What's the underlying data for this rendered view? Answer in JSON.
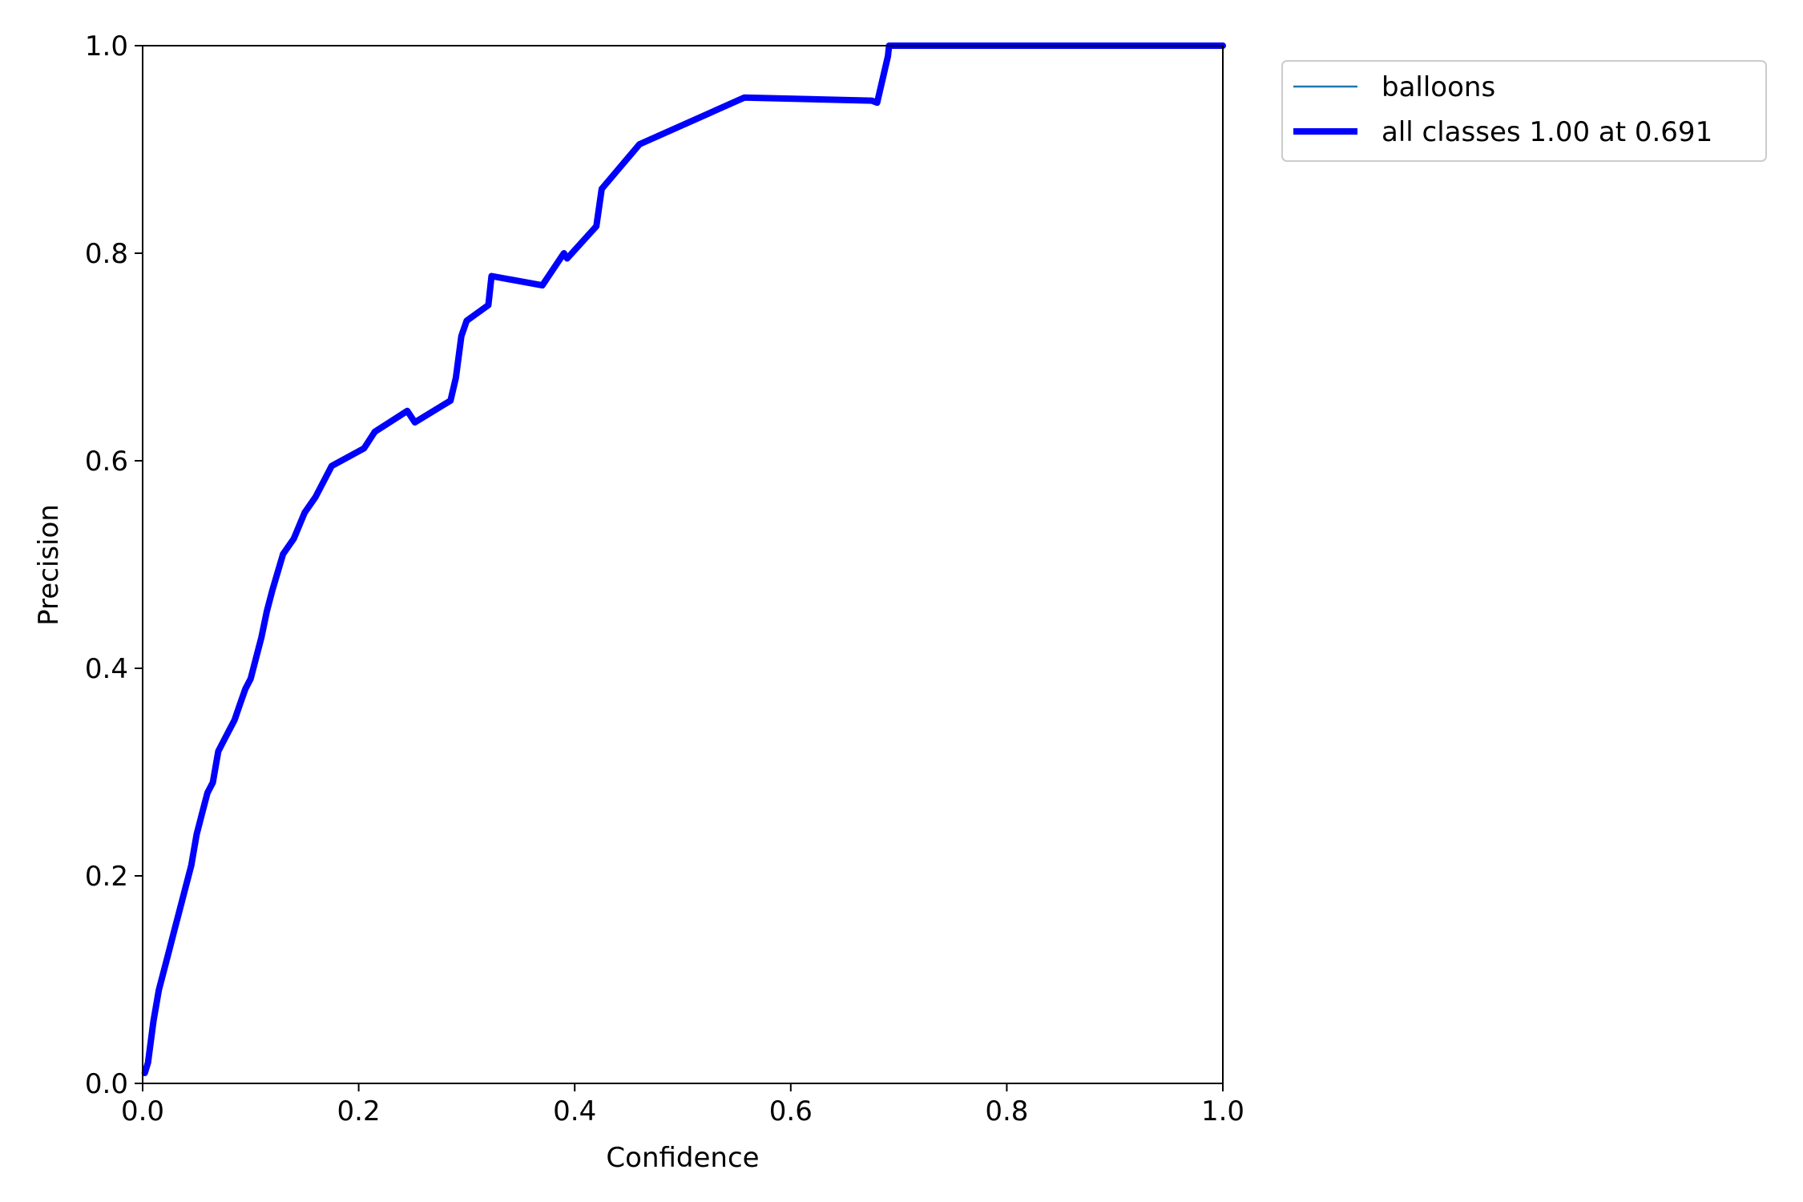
{
  "chart_data": {
    "type": "line",
    "title": "",
    "xlabel": "Confidence",
    "ylabel": "Precision",
    "xlim": [
      0,
      1
    ],
    "ylim": [
      0,
      1
    ],
    "xticks": [
      "0.0",
      "0.2",
      "0.4",
      "0.6",
      "0.8",
      "1.0"
    ],
    "yticks": [
      "0.0",
      "0.2",
      "0.4",
      "0.6",
      "0.8",
      "1.0"
    ],
    "grid": false,
    "legend_placement": "outside-top-right",
    "series": [
      {
        "name": "balloons",
        "color": "#1f77b4",
        "style": "thin",
        "x": [
          0.002,
          0.005,
          0.01,
          0.015,
          0.02,
          0.025,
          0.03,
          0.035,
          0.04,
          0.045,
          0.05,
          0.055,
          0.06,
          0.065,
          0.07,
          0.075,
          0.08,
          0.085,
          0.09,
          0.095,
          0.1,
          0.105,
          0.11,
          0.115,
          0.12,
          0.13,
          0.14,
          0.15,
          0.16,
          0.175,
          0.205,
          0.215,
          0.245,
          0.252,
          0.285,
          0.29,
          0.295,
          0.3,
          0.32,
          0.323,
          0.37,
          0.39,
          0.393,
          0.42,
          0.425,
          0.46,
          0.557,
          0.675,
          0.68,
          0.69,
          0.691,
          0.75,
          0.85,
          1.0
        ],
        "y": [
          0.01,
          0.02,
          0.06,
          0.09,
          0.11,
          0.13,
          0.15,
          0.17,
          0.19,
          0.21,
          0.24,
          0.26,
          0.28,
          0.29,
          0.32,
          0.33,
          0.34,
          0.35,
          0.365,
          0.38,
          0.39,
          0.41,
          0.43,
          0.455,
          0.475,
          0.51,
          0.525,
          0.55,
          0.565,
          0.595,
          0.612,
          0.628,
          0.648,
          0.637,
          0.658,
          0.68,
          0.72,
          0.735,
          0.75,
          0.778,
          0.769,
          0.8,
          0.795,
          0.826,
          0.862,
          0.905,
          0.95,
          0.947,
          0.945,
          0.99,
          1.0,
          1.0,
          1.0,
          1.0
        ]
      },
      {
        "name": "all classes 1.00 at 0.691",
        "color": "#0000ff",
        "style": "thick",
        "x": [
          0.002,
          0.005,
          0.01,
          0.015,
          0.02,
          0.025,
          0.03,
          0.035,
          0.04,
          0.045,
          0.05,
          0.055,
          0.06,
          0.065,
          0.07,
          0.075,
          0.08,
          0.085,
          0.09,
          0.095,
          0.1,
          0.105,
          0.11,
          0.115,
          0.12,
          0.13,
          0.14,
          0.15,
          0.16,
          0.175,
          0.205,
          0.215,
          0.245,
          0.252,
          0.285,
          0.29,
          0.295,
          0.3,
          0.32,
          0.323,
          0.37,
          0.39,
          0.393,
          0.42,
          0.425,
          0.46,
          0.557,
          0.675,
          0.68,
          0.69,
          0.691,
          0.75,
          0.85,
          1.0
        ],
        "y": [
          0.01,
          0.02,
          0.06,
          0.09,
          0.11,
          0.13,
          0.15,
          0.17,
          0.19,
          0.21,
          0.24,
          0.26,
          0.28,
          0.29,
          0.32,
          0.33,
          0.34,
          0.35,
          0.365,
          0.38,
          0.39,
          0.41,
          0.43,
          0.455,
          0.475,
          0.51,
          0.525,
          0.55,
          0.565,
          0.595,
          0.612,
          0.628,
          0.648,
          0.637,
          0.658,
          0.68,
          0.72,
          0.735,
          0.75,
          0.778,
          0.769,
          0.8,
          0.795,
          0.826,
          0.862,
          0.905,
          0.95,
          0.947,
          0.945,
          0.99,
          1.0,
          1.0,
          1.0,
          1.0
        ]
      }
    ]
  }
}
